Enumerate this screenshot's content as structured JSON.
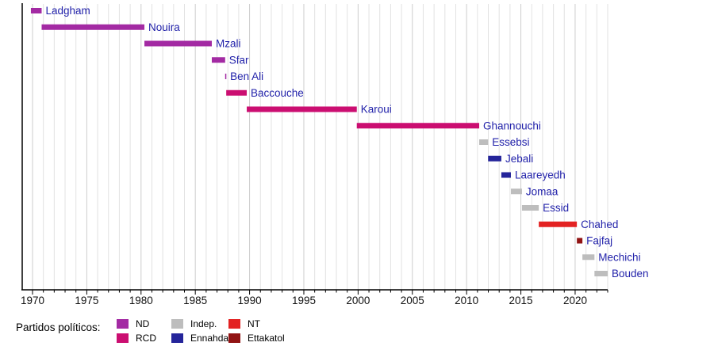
{
  "chart_data": {
    "type": "bar",
    "variant": "horizontal-timeline-gantt",
    "title": "",
    "xlabel": "",
    "ylabel": "",
    "x_domain": [
      1969.05,
      2023.0
    ],
    "x_ticks_major": [
      1970,
      1975,
      1980,
      1985,
      1990,
      1995,
      2000,
      2005,
      2010,
      2015,
      2020
    ],
    "x_tick_minor_step": 1,
    "grid": true,
    "legend_position": "bottom",
    "colors": {
      "bar_label": "#2222AA",
      "axis": "#000000",
      "tick_label": "#111111",
      "grid_minor": "#E2E2E2",
      "grid_major": "#CDCDCD",
      "background": "#FFFFFF"
    },
    "parties": {
      "ND": "#A32AA3",
      "RCD": "#CB0E71",
      "Indep": "#BDBDBD",
      "Ennahda": "#24249A",
      "NT": "#E32222",
      "Ettakatol": "#911313"
    },
    "bars": [
      {
        "name": "Ladgham",
        "start": 1969.85,
        "end": 1970.84,
        "party": "ND"
      },
      {
        "name": "Nouira",
        "start": 1970.84,
        "end": 1980.31,
        "party": "ND"
      },
      {
        "name": "Mzali",
        "start": 1980.31,
        "end": 1986.52,
        "party": "ND"
      },
      {
        "name": "Sfar",
        "start": 1986.52,
        "end": 1987.75,
        "party": "ND"
      },
      {
        "name": "Ben Ali",
        "start": 1987.75,
        "end": 1987.85,
        "party": "ND"
      },
      {
        "name": "Baccouche",
        "start": 1987.85,
        "end": 1989.74,
        "party": "RCD"
      },
      {
        "name": "Karoui",
        "start": 1989.74,
        "end": 1999.88,
        "party": "RCD"
      },
      {
        "name": "Ghannouchi",
        "start": 1999.88,
        "end": 2011.16,
        "party": "RCD"
      },
      {
        "name": "Essebsi",
        "start": 2011.16,
        "end": 2011.98,
        "party": "Indep"
      },
      {
        "name": "Jebali",
        "start": 2011.98,
        "end": 2013.2,
        "party": "Ennahda"
      },
      {
        "name": "Laareyedh",
        "start": 2013.2,
        "end": 2014.08,
        "party": "Ennahda"
      },
      {
        "name": "Jomaa",
        "start": 2014.08,
        "end": 2015.1,
        "party": "Indep"
      },
      {
        "name": "Essid",
        "start": 2015.1,
        "end": 2016.65,
        "party": "Indep"
      },
      {
        "name": "Chahed",
        "start": 2016.65,
        "end": 2020.16,
        "party": "NT"
      },
      {
        "name": "Fajfaj",
        "start": 2020.16,
        "end": 2020.67,
        "party": "Ettakatol"
      },
      {
        "name": "Mechichi",
        "start": 2020.67,
        "end": 2021.78,
        "party": "Indep"
      },
      {
        "name": "Bouden",
        "start": 2021.78,
        "end": 2023.0,
        "party": "Indep"
      }
    ],
    "legend": {
      "title": "Partidos políticos:",
      "columns": [
        [
          {
            "label": "ND",
            "party": "ND"
          },
          {
            "label": "RCD",
            "party": "RCD"
          }
        ],
        [
          {
            "label": "Indep.",
            "party": "Indep"
          },
          {
            "label": "Ennahda",
            "party": "Ennahda"
          }
        ],
        [
          {
            "label": "NT",
            "party": "NT"
          },
          {
            "label": "Ettakatol",
            "party": "Ettakatol"
          }
        ]
      ]
    }
  }
}
